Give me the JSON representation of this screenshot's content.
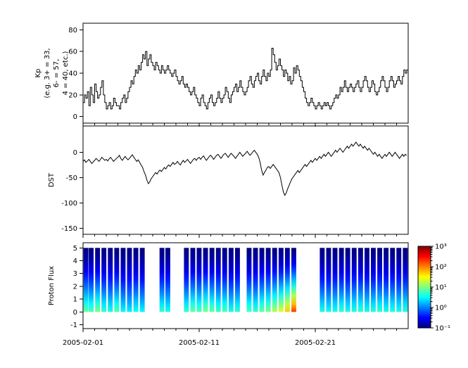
{
  "figure_title": "",
  "x_axis": {
    "tick_labels": [
      "2005-02-01",
      "2005-02-11",
      "2005-02-21"
    ],
    "tick_days": [
      0,
      10,
      20
    ],
    "minor_step_days": 1,
    "range_days": [
      0,
      28
    ]
  },
  "colors": {
    "axis": "#000000",
    "line": "#000000",
    "background": "#ffffff"
  },
  "chart_data": [
    {
      "id": "kp",
      "type": "line",
      "style": "step",
      "ylabel_lines": [
        "Kp",
        "(e.g. 3+ = 33,",
        "6- = 57,",
        "4 = 40, etc.)"
      ],
      "ylim": [
        -6,
        86
      ],
      "yticks": [
        0,
        20,
        40,
        60,
        80
      ],
      "x_step_days": 0.125,
      "values": [
        13,
        20,
        17,
        23,
        10,
        27,
        20,
        13,
        30,
        23,
        17,
        20,
        27,
        33,
        20,
        13,
        7,
        10,
        13,
        7,
        10,
        17,
        13,
        10,
        10,
        7,
        13,
        17,
        20,
        13,
        17,
        23,
        27,
        33,
        30,
        37,
        43,
        40,
        47,
        43,
        50,
        57,
        53,
        60,
        47,
        53,
        57,
        50,
        47,
        43,
        50,
        47,
        43,
        40,
        47,
        43,
        40,
        43,
        47,
        43,
        40,
        37,
        40,
        43,
        37,
        33,
        30,
        33,
        37,
        30,
        27,
        30,
        27,
        23,
        20,
        23,
        27,
        20,
        17,
        13,
        10,
        17,
        20,
        13,
        10,
        7,
        13,
        17,
        20,
        13,
        10,
        13,
        17,
        23,
        17,
        13,
        17,
        20,
        27,
        23,
        17,
        13,
        20,
        23,
        27,
        30,
        23,
        27,
        33,
        27,
        23,
        20,
        23,
        27,
        33,
        37,
        30,
        27,
        33,
        37,
        40,
        33,
        30,
        37,
        43,
        37,
        33,
        40,
        37,
        43,
        63,
        57,
        50,
        43,
        47,
        53,
        47,
        43,
        37,
        43,
        40,
        33,
        37,
        30,
        33,
        45,
        40,
        47,
        43,
        37,
        33,
        27,
        23,
        17,
        13,
        10,
        13,
        17,
        13,
        10,
        7,
        10,
        13,
        10,
        7,
        10,
        13,
        10,
        13,
        10,
        7,
        10,
        13,
        17,
        20,
        17,
        20,
        27,
        23,
        27,
        33,
        27,
        23,
        27,
        30,
        27,
        23,
        27,
        30,
        33,
        27,
        23,
        27,
        33,
        37,
        33,
        27,
        23,
        27,
        33,
        30,
        23,
        20,
        23,
        27,
        33,
        37,
        33,
        27,
        23,
        27,
        33,
        37,
        33,
        27,
        30,
        33,
        37,
        33,
        30,
        37,
        43,
        40,
        43
      ]
    },
    {
      "id": "dst",
      "type": "line",
      "style": "line",
      "ylabel": "DST",
      "ylim": [
        -162,
        52
      ],
      "yticks": [
        0,
        -50,
        -100,
        -150
      ],
      "x_step_days": 0.125,
      "values": [
        -18,
        -15,
        -20,
        -17,
        -14,
        -18,
        -22,
        -19,
        -16,
        -12,
        -15,
        -18,
        -14,
        -10,
        -13,
        -16,
        -14,
        -17,
        -13,
        -10,
        -14,
        -18,
        -15,
        -12,
        -10,
        -6,
        -12,
        -16,
        -12,
        -8,
        -12,
        -15,
        -12,
        -8,
        -5,
        -10,
        -14,
        -18,
        -15,
        -20,
        -25,
        -30,
        -38,
        -45,
        -55,
        -62,
        -58,
        -52,
        -48,
        -44,
        -40,
        -43,
        -38,
        -35,
        -38,
        -34,
        -30,
        -33,
        -28,
        -25,
        -28,
        -24,
        -20,
        -24,
        -22,
        -18,
        -22,
        -25,
        -20,
        -16,
        -20,
        -17,
        -14,
        -18,
        -22,
        -18,
        -14,
        -12,
        -16,
        -12,
        -10,
        -14,
        -10,
        -7,
        -12,
        -16,
        -12,
        -8,
        -6,
        -10,
        -14,
        -10,
        -6,
        -4,
        -8,
        -12,
        -8,
        -4,
        -2,
        -6,
        -10,
        -6,
        -2,
        -5,
        -8,
        -12,
        -8,
        -4,
        0,
        -4,
        -8,
        -5,
        -2,
        2,
        -2,
        -6,
        -3,
        1,
        4,
        0,
        -4,
        -10,
        -20,
        -35,
        -45,
        -40,
        -35,
        -30,
        -28,
        -32,
        -28,
        -24,
        -28,
        -32,
        -36,
        -40,
        -50,
        -65,
        -78,
        -85,
        -80,
        -72,
        -65,
        -58,
        -52,
        -48,
        -44,
        -40,
        -36,
        -40,
        -36,
        -32,
        -28,
        -24,
        -28,
        -24,
        -20,
        -16,
        -20,
        -16,
        -12,
        -16,
        -12,
        -8,
        -12,
        -8,
        -4,
        -8,
        -4,
        0,
        -4,
        -8,
        -4,
        0,
        4,
        0,
        4,
        8,
        4,
        0,
        4,
        8,
        12,
        8,
        12,
        16,
        12,
        16,
        20,
        16,
        12,
        16,
        12,
        8,
        12,
        8,
        4,
        8,
        4,
        0,
        -4,
        0,
        -4,
        -8,
        -4,
        -8,
        -12,
        -8,
        -4,
        -8,
        -4,
        0,
        -4,
        -8,
        -4,
        0,
        -4,
        -8,
        -12,
        -8,
        -4,
        -8,
        -4,
        -6
      ]
    },
    {
      "id": "pf",
      "type": "heatmap",
      "ylabel": "Proton Flux",
      "ylim": [
        -1.3,
        5.4
      ],
      "yticks": [
        -1,
        0,
        1,
        2,
        3,
        4,
        5
      ],
      "col_width_days": 0.42,
      "column_y_range": [
        0,
        5
      ],
      "columns_day_logflux": [
        [
          0.25,
          0.9
        ],
        [
          0.7,
          0.8
        ],
        [
          1.25,
          1.0
        ],
        [
          1.8,
          0.7
        ],
        [
          2.35,
          0.6
        ],
        [
          2.9,
          0.85
        ],
        [
          3.45,
          0.5
        ],
        [
          4.0,
          0.45
        ],
        [
          4.55,
          0.6
        ],
        [
          5.1,
          0.5
        ],
        [
          6.8,
          0.7
        ],
        [
          7.3,
          0.6
        ],
        [
          8.9,
          0.7
        ],
        [
          9.45,
          0.9
        ],
        [
          10.0,
          0.8
        ],
        [
          10.55,
          1.0
        ],
        [
          11.1,
          0.9
        ],
        [
          11.65,
          0.75
        ],
        [
          12.2,
          0.8
        ],
        [
          12.75,
          0.6
        ],
        [
          13.3,
          0.7
        ],
        [
          14.3,
          0.8
        ],
        [
          14.85,
          0.7
        ],
        [
          15.4,
          0.9
        ],
        [
          15.95,
          1.0
        ],
        [
          16.5,
          1.2
        ],
        [
          17.05,
          1.4
        ],
        [
          17.6,
          1.7
        ],
        [
          18.15,
          2.3
        ],
        [
          20.6,
          0.6
        ],
        [
          21.15,
          0.55
        ],
        [
          21.7,
          0.6
        ],
        [
          22.25,
          0.7
        ],
        [
          22.8,
          0.6
        ],
        [
          23.35,
          0.65
        ],
        [
          23.9,
          0.7
        ],
        [
          24.45,
          0.6
        ],
        [
          25.0,
          0.65
        ],
        [
          25.55,
          0.7
        ],
        [
          26.1,
          0.6
        ],
        [
          26.65,
          0.65
        ],
        [
          27.2,
          0.6
        ],
        [
          27.75,
          0.65
        ]
      ],
      "colorbar": {
        "scale": "log",
        "cmap": "jet",
        "clim_log10": [
          -1,
          3
        ],
        "tick_log10": [
          3,
          2,
          1,
          0,
          -1
        ],
        "tick_labels": [
          "10³",
          "10²",
          "10¹",
          "10⁰",
          "10⁻¹"
        ]
      }
    }
  ]
}
